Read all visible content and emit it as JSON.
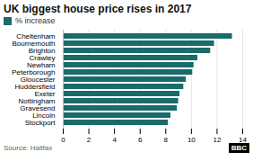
{
  "chart_data": {
    "type": "bar",
    "orientation": "horizontal",
    "title": "UK biggest house price rises in 2017",
    "categories": [
      "Cheltenham",
      "Bournemouth",
      "Brighton",
      "Crawley",
      "Newham",
      "Peterborough",
      "Gloucester",
      "Huddersfield",
      "Exeter",
      "Nottingham",
      "Gravesend",
      "Lincoln",
      "Stockport"
    ],
    "series": [
      {
        "name": "% increase",
        "color": "#1a6b6b",
        "values": [
          13.2,
          11.8,
          11.5,
          10.5,
          10.2,
          10.1,
          9.6,
          9.4,
          9.1,
          9.0,
          8.9,
          8.4,
          8.2
        ]
      }
    ],
    "xlim": [
      0,
      14
    ],
    "xticks": [
      0,
      2,
      4,
      6,
      8,
      10,
      12,
      14
    ],
    "grid": true,
    "legend": "upper left",
    "annotations": [
      "Source: Halifax",
      "BBC"
    ]
  }
}
